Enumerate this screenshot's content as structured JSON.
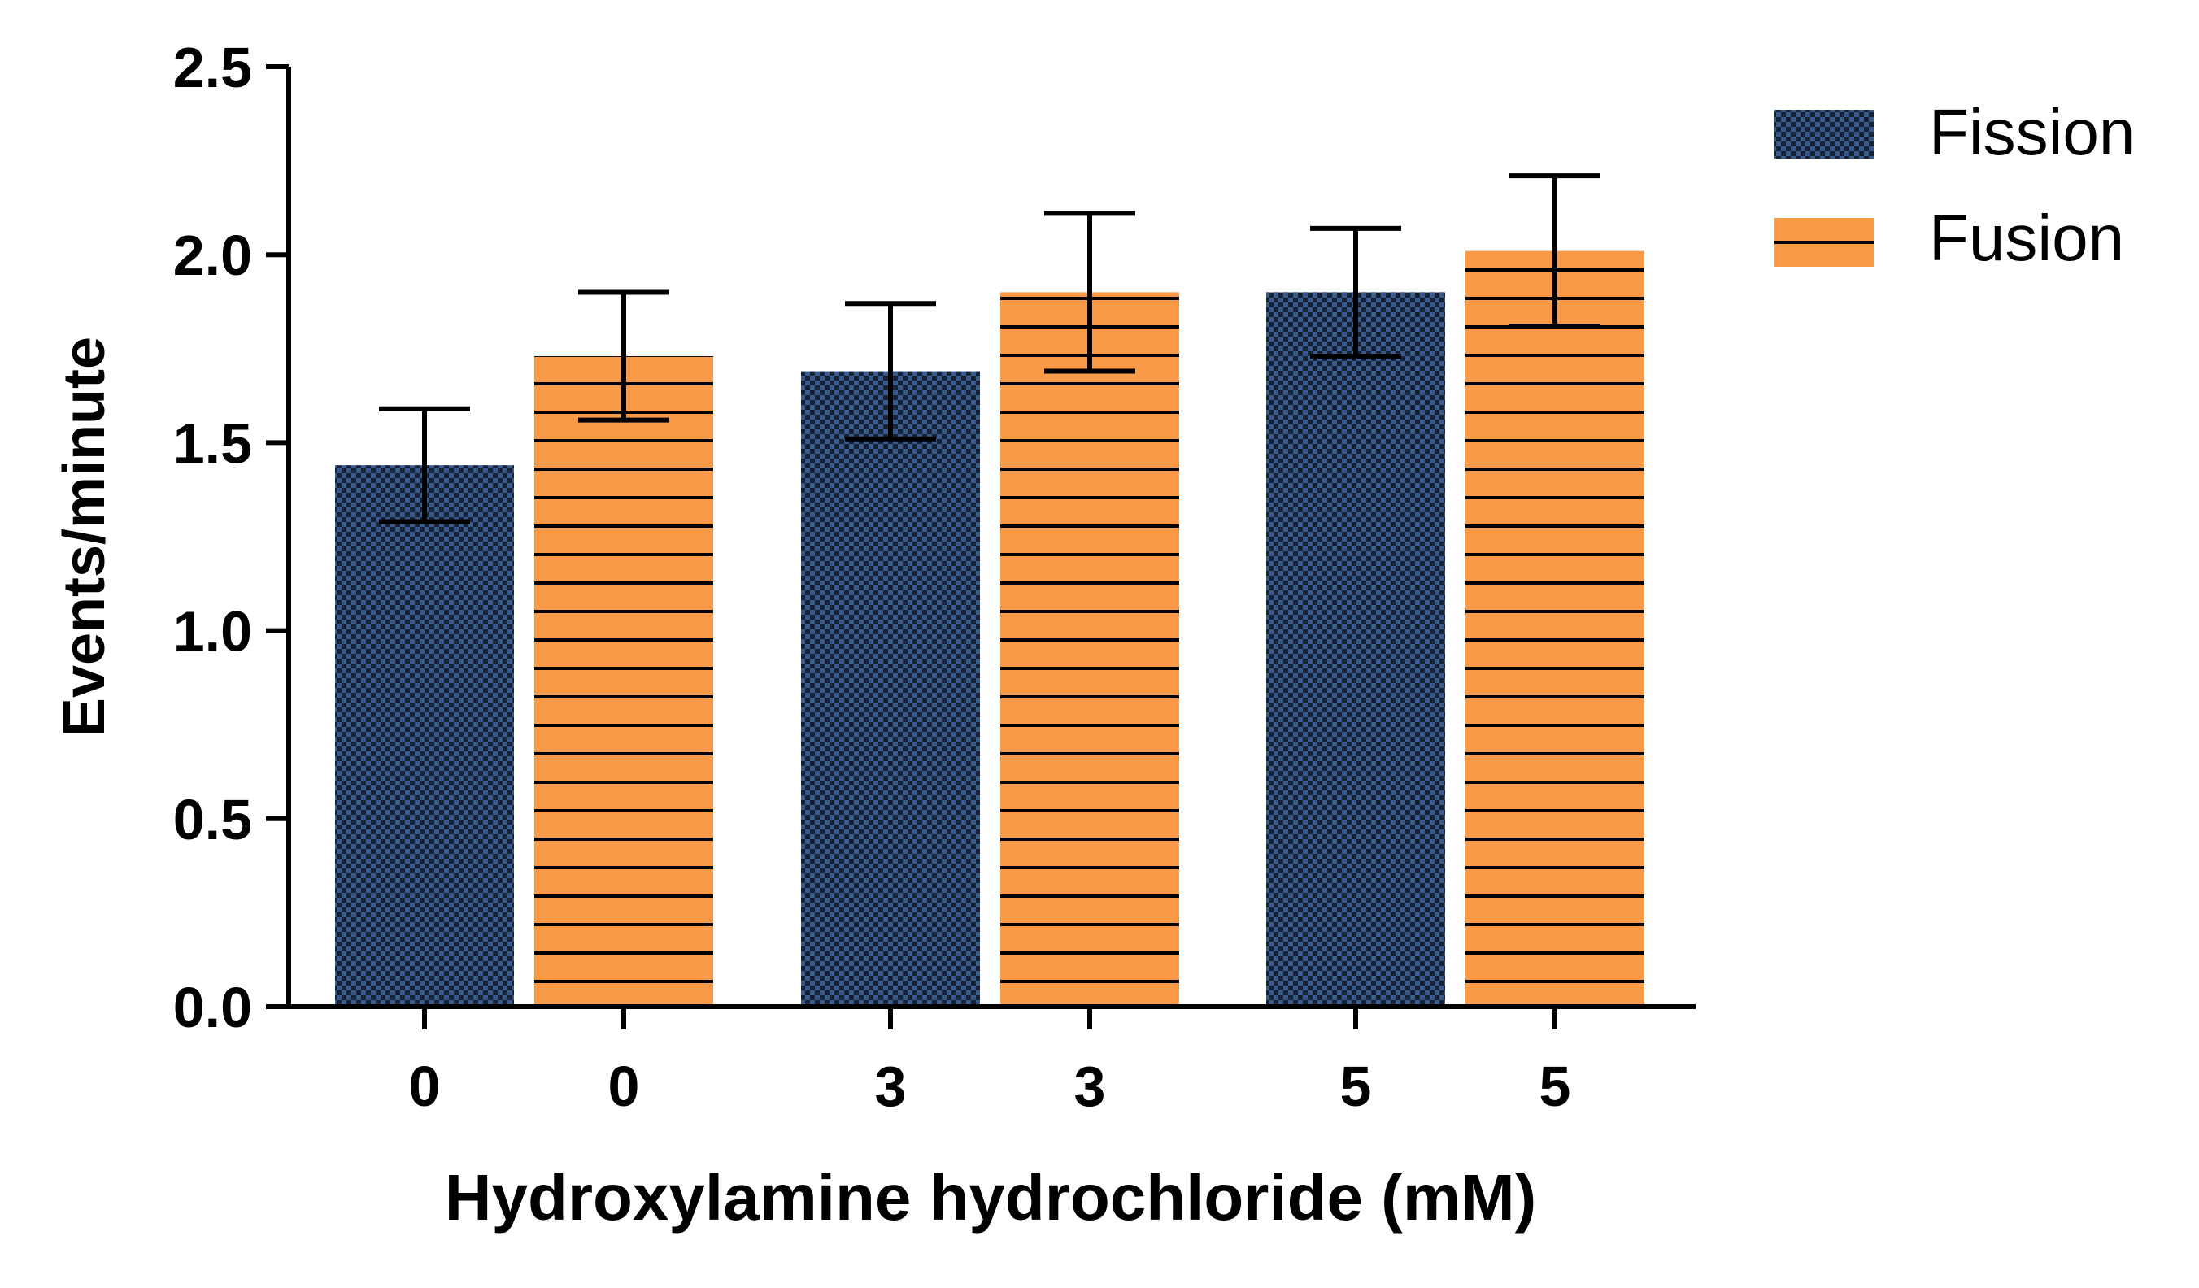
{
  "chart_data": {
    "type": "bar",
    "xlabel": "Hydroxylamine hydrochloride (mM)",
    "ylabel": "Events/minute",
    "ylim": [
      0,
      2.5
    ],
    "yticks": [
      "0.0",
      "0.5",
      "1.0",
      "1.5",
      "2.0",
      "2.5"
    ],
    "ytick_values": [
      0,
      0.5,
      1.0,
      1.5,
      2.0,
      2.5
    ],
    "categories": [
      "0",
      "3",
      "5"
    ],
    "series": [
      {
        "name": "Fission",
        "values": [
          1.44,
          1.69,
          1.9
        ],
        "errors": [
          0.15,
          0.18,
          0.17
        ],
        "color": "#3b5a8c",
        "pattern": "checkered"
      },
      {
        "name": "Fusion",
        "values": [
          1.73,
          1.9,
          2.01
        ],
        "errors": [
          0.17,
          0.21,
          0.2
        ],
        "color": "#f89a48",
        "pattern": "horizontal-lines"
      }
    ],
    "grid": false,
    "legend_position": "top-right"
  }
}
